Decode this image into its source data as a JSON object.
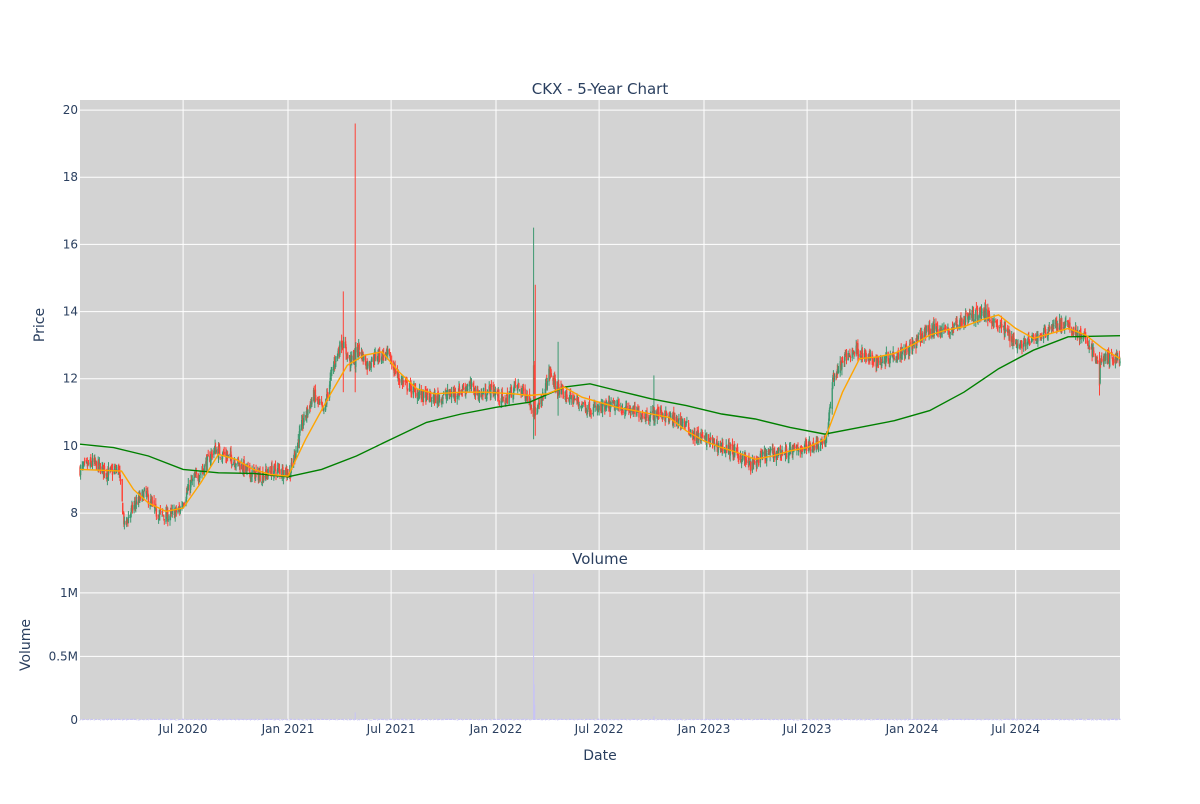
{
  "chart_data": {
    "type": "candlestick",
    "title": "CKX - 5-Year Chart",
    "xlabel": "Date",
    "x_start": "2020-01-02",
    "x_end": "2024-12-31",
    "x_ticks": [
      {
        "date": "2020-07-01",
        "label": "Jul 2020"
      },
      {
        "date": "2021-01-01",
        "label": "Jan 2021"
      },
      {
        "date": "2021-07-01",
        "label": "Jul 2021"
      },
      {
        "date": "2022-01-01",
        "label": "Jan 2022"
      },
      {
        "date": "2022-07-01",
        "label": "Jul 2022"
      },
      {
        "date": "2023-01-01",
        "label": "Jan 2023"
      },
      {
        "date": "2023-07-01",
        "label": "Jul 2023"
      },
      {
        "date": "2024-01-01",
        "label": "Jan 2024"
      },
      {
        "date": "2024-07-01",
        "label": "Jul 2024"
      }
    ],
    "price_panel": {
      "ylabel": "Price",
      "ylim": [
        6.9,
        20.3
      ],
      "y_ticks": [
        8,
        10,
        12,
        14,
        16,
        18,
        20
      ],
      "y_tick_labels": [
        "8",
        "10",
        "12",
        "14",
        "16",
        "18",
        "20"
      ],
      "background": "#d3d3d3",
      "up_color": "#3d9970",
      "down_color": "#ff4136",
      "close_path": [
        [
          "2020-01-02",
          9.3
        ],
        [
          "2020-01-25",
          9.5
        ],
        [
          "2020-02-20",
          9.2
        ],
        [
          "2020-03-10",
          9.3
        ],
        [
          "2020-03-20",
          7.6
        ],
        [
          "2020-04-05",
          8.2
        ],
        [
          "2020-04-25",
          8.6
        ],
        [
          "2020-05-15",
          8.0
        ],
        [
          "2020-06-05",
          7.9
        ],
        [
          "2020-06-25",
          8.1
        ],
        [
          "2020-07-15",
          8.9
        ],
        [
          "2020-08-05",
          9.3
        ],
        [
          "2020-08-25",
          9.9
        ],
        [
          "2020-09-15",
          9.7
        ],
        [
          "2020-10-05",
          9.5
        ],
        [
          "2020-10-25",
          9.2
        ],
        [
          "2020-11-15",
          9.1
        ],
        [
          "2020-12-10",
          9.3
        ],
        [
          "2021-01-05",
          9.2
        ],
        [
          "2021-01-25",
          10.6
        ],
        [
          "2021-02-15",
          11.5
        ],
        [
          "2021-03-05",
          11.0
        ],
        [
          "2021-03-20",
          12.3
        ],
        [
          "2021-04-05",
          13.1
        ],
        [
          "2021-04-20",
          12.5
        ],
        [
          "2021-05-05",
          12.9
        ],
        [
          "2021-05-20",
          12.4
        ],
        [
          "2021-06-05",
          12.7
        ],
        [
          "2021-06-25",
          12.7
        ],
        [
          "2021-07-15",
          12.0
        ],
        [
          "2021-08-05",
          11.7
        ],
        [
          "2021-08-25",
          11.5
        ],
        [
          "2021-09-15",
          11.4
        ],
        [
          "2021-10-05",
          11.5
        ],
        [
          "2021-10-25",
          11.6
        ],
        [
          "2021-11-15",
          11.8
        ],
        [
          "2021-12-05",
          11.5
        ],
        [
          "2021-12-25",
          11.7
        ],
        [
          "2022-01-15",
          11.3
        ],
        [
          "2022-02-05",
          11.8
        ],
        [
          "2022-02-25",
          11.5
        ],
        [
          "2022-03-10",
          11.0
        ],
        [
          "2022-03-20",
          11.2
        ],
        [
          "2022-04-05",
          12.2
        ],
        [
          "2022-04-20",
          11.6
        ],
        [
          "2022-05-05",
          11.5
        ],
        [
          "2022-05-25",
          11.3
        ],
        [
          "2022-06-15",
          11.1
        ],
        [
          "2022-07-05",
          11.1
        ],
        [
          "2022-07-25",
          11.2
        ],
        [
          "2022-08-15",
          11.1
        ],
        [
          "2022-09-05",
          11.0
        ],
        [
          "2022-09-25",
          10.9
        ],
        [
          "2022-10-15",
          11.0
        ],
        [
          "2022-11-05",
          10.8
        ],
        [
          "2022-11-25",
          10.7
        ],
        [
          "2022-12-15",
          10.3
        ],
        [
          "2023-01-05",
          10.2
        ],
        [
          "2023-01-25",
          10.0
        ],
        [
          "2023-02-15",
          9.9
        ],
        [
          "2023-03-05",
          9.7
        ],
        [
          "2023-03-25",
          9.4
        ],
        [
          "2023-04-15",
          9.7
        ],
        [
          "2023-05-05",
          9.8
        ],
        [
          "2023-05-25",
          9.8
        ],
        [
          "2023-06-15",
          9.9
        ],
        [
          "2023-07-05",
          10.0
        ],
        [
          "2023-07-25",
          10.1
        ],
        [
          "2023-08-05",
          10.2
        ],
        [
          "2023-08-15",
          12.0
        ],
        [
          "2023-09-05",
          12.6
        ],
        [
          "2023-09-25",
          12.9
        ],
        [
          "2023-10-15",
          12.6
        ],
        [
          "2023-11-05",
          12.5
        ],
        [
          "2023-11-25",
          12.7
        ],
        [
          "2023-12-15",
          12.8
        ],
        [
          "2024-01-05",
          13.0
        ],
        [
          "2024-01-25",
          13.4
        ],
        [
          "2024-02-15",
          13.5
        ],
        [
          "2024-03-05",
          13.4
        ],
        [
          "2024-03-25",
          13.7
        ],
        [
          "2024-04-15",
          13.9
        ],
        [
          "2024-05-05",
          14.0
        ],
        [
          "2024-05-25",
          13.7
        ],
        [
          "2024-06-15",
          13.4
        ],
        [
          "2024-07-05",
          13.0
        ],
        [
          "2024-07-25",
          13.1
        ],
        [
          "2024-08-15",
          13.3
        ],
        [
          "2024-09-05",
          13.6
        ],
        [
          "2024-09-25",
          13.6
        ],
        [
          "2024-10-15",
          13.4
        ],
        [
          "2024-11-05",
          13.1
        ],
        [
          "2024-11-20",
          12.5
        ],
        [
          "2024-12-05",
          12.6
        ],
        [
          "2024-12-31",
          12.6
        ]
      ],
      "spikes": [
        {
          "date": "2021-04-29",
          "high": 19.6,
          "low": 11.6,
          "close": 12.3
        },
        {
          "date": "2021-04-08",
          "high": 14.6,
          "low": 11.6,
          "close": 12.9
        },
        {
          "date": "2022-03-08",
          "high": 16.5,
          "low": 10.2,
          "close": 12.4
        },
        {
          "date": "2022-03-11",
          "high": 14.8,
          "low": 10.3,
          "close": 10.9
        },
        {
          "date": "2022-04-20",
          "high": 13.1,
          "low": 10.9,
          "close": 11.8
        },
        {
          "date": "2022-10-05",
          "high": 12.1,
          "low": 10.6,
          "close": 11.1
        },
        {
          "date": "2023-04-01",
          "high": 9.6,
          "low": 8.6,
          "close": 9.1
        },
        {
          "date": "2024-11-25",
          "high": 12.8,
          "low": 11.5,
          "close": 11.8
        }
      ],
      "ma_short": {
        "color": "#ffa500",
        "values": [
          [
            "2020-01-02",
            9.3
          ],
          [
            "2020-03-15",
            9.25
          ],
          [
            "2020-04-05",
            8.7
          ],
          [
            "2020-05-01",
            8.3
          ],
          [
            "2020-06-01",
            8.05
          ],
          [
            "2020-07-01",
            8.15
          ],
          [
            "2020-08-01",
            8.9
          ],
          [
            "2020-09-01",
            9.75
          ],
          [
            "2020-10-01",
            9.6
          ],
          [
            "2020-11-01",
            9.3
          ],
          [
            "2020-12-01",
            9.15
          ],
          [
            "2021-01-01",
            9.1
          ],
          [
            "2021-02-01",
            10.2
          ],
          [
            "2021-03-15",
            11.5
          ],
          [
            "2021-04-15",
            12.4
          ],
          [
            "2021-05-15",
            12.7
          ],
          [
            "2021-06-15",
            12.8
          ],
          [
            "2021-07-15",
            12.2
          ],
          [
            "2021-08-15",
            11.7
          ],
          [
            "2021-09-15",
            11.55
          ],
          [
            "2021-11-01",
            11.6
          ],
          [
            "2021-12-15",
            11.6
          ],
          [
            "2022-02-01",
            11.55
          ],
          [
            "2022-03-01",
            11.5
          ],
          [
            "2022-04-01",
            11.55
          ],
          [
            "2022-05-01",
            11.75
          ],
          [
            "2022-06-01",
            11.45
          ],
          [
            "2022-07-01",
            11.3
          ],
          [
            "2022-08-01",
            11.15
          ],
          [
            "2022-09-01",
            11.05
          ],
          [
            "2022-10-01",
            10.95
          ],
          [
            "2022-11-01",
            10.85
          ],
          [
            "2022-12-01",
            10.45
          ],
          [
            "2023-01-01",
            10.15
          ],
          [
            "2023-02-01",
            9.95
          ],
          [
            "2023-03-01",
            9.8
          ],
          [
            "2023-04-01",
            9.6
          ],
          [
            "2023-05-01",
            9.7
          ],
          [
            "2023-06-01",
            9.85
          ],
          [
            "2023-07-01",
            9.95
          ],
          [
            "2023-08-01",
            10.2
          ],
          [
            "2023-09-01",
            11.6
          ],
          [
            "2023-10-01",
            12.6
          ],
          [
            "2023-11-01",
            12.65
          ],
          [
            "2023-12-01",
            12.75
          ],
          [
            "2024-01-01",
            13.0
          ],
          [
            "2024-02-01",
            13.3
          ],
          [
            "2024-03-01",
            13.45
          ],
          [
            "2024-04-01",
            13.55
          ],
          [
            "2024-05-01",
            13.75
          ],
          [
            "2024-06-01",
            13.9
          ],
          [
            "2024-07-01",
            13.5
          ],
          [
            "2024-08-01",
            13.2
          ],
          [
            "2024-09-01",
            13.35
          ],
          [
            "2024-10-01",
            13.5
          ],
          [
            "2024-11-01",
            13.3
          ],
          [
            "2024-12-01",
            12.9
          ],
          [
            "2024-12-31",
            12.6
          ]
        ]
      },
      "ma_long": {
        "color": "#008000",
        "values": [
          [
            "2020-01-02",
            10.05
          ],
          [
            "2020-03-01",
            9.95
          ],
          [
            "2020-05-01",
            9.7
          ],
          [
            "2020-07-01",
            9.3
          ],
          [
            "2020-09-01",
            9.2
          ],
          [
            "2020-11-01",
            9.18
          ],
          [
            "2021-01-01",
            9.08
          ],
          [
            "2021-03-01",
            9.3
          ],
          [
            "2021-05-01",
            9.7
          ],
          [
            "2021-07-01",
            10.2
          ],
          [
            "2021-09-01",
            10.7
          ],
          [
            "2021-11-01",
            10.95
          ],
          [
            "2022-01-01",
            11.15
          ],
          [
            "2022-03-01",
            11.3
          ],
          [
            "2022-05-01",
            11.75
          ],
          [
            "2022-06-15",
            11.85
          ],
          [
            "2022-08-01",
            11.65
          ],
          [
            "2022-10-01",
            11.4
          ],
          [
            "2022-12-01",
            11.2
          ],
          [
            "2023-02-01",
            10.95
          ],
          [
            "2023-04-01",
            10.8
          ],
          [
            "2023-06-01",
            10.55
          ],
          [
            "2023-08-01",
            10.35
          ],
          [
            "2023-10-01",
            10.55
          ],
          [
            "2023-12-01",
            10.75
          ],
          [
            "2024-02-01",
            11.05
          ],
          [
            "2024-04-01",
            11.6
          ],
          [
            "2024-06-01",
            12.3
          ],
          [
            "2024-08-01",
            12.85
          ],
          [
            "2024-10-01",
            13.25
          ],
          [
            "2024-12-31",
            13.28
          ]
        ]
      }
    },
    "volume_panel": {
      "title": "Volume",
      "ylabel": "Volume",
      "ylim": [
        0,
        1180000
      ],
      "y_ticks": [
        0,
        500000,
        1000000
      ],
      "y_tick_labels": [
        "0",
        "0.5M",
        "1M"
      ],
      "background": "#d3d3d3",
      "bar_color": "#c7c3f5",
      "spikes": [
        {
          "date": "2022-03-08",
          "value": 1150000
        },
        {
          "date": "2022-03-09",
          "value": 280000
        },
        {
          "date": "2022-03-10",
          "value": 120000
        },
        {
          "date": "2021-04-29",
          "value": 60000
        },
        {
          "date": "2022-10-05",
          "value": 30000
        }
      ]
    }
  }
}
